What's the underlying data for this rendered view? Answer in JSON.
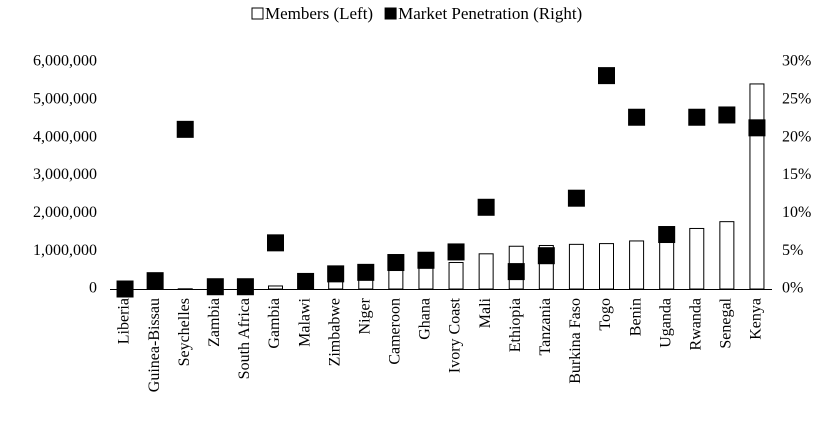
{
  "chart_data": {
    "type": "bar_scatter",
    "categories": [
      "Liberia",
      "Guinea-Bissau",
      "Seychelles",
      "Zambia",
      "South Africa",
      "Gambia",
      "Malawi",
      "Zimbabwe",
      "Niger",
      "Cameroon",
      "Ghana",
      "Ivory Coast",
      "Mali",
      "Ethiopia",
      "Tanzania",
      "Burkina Faso",
      "Togo",
      "Benin",
      "Uganda",
      "Rwanda",
      "Senegal",
      "Kenya"
    ],
    "series": [
      {
        "name": "Members (Left)",
        "color": "#ffffff",
        "axis": "y",
        "values": [
          0,
          20000,
          5000,
          10000,
          10000,
          80000,
          100000,
          200000,
          250000,
          500000,
          550000,
          700000,
          930000,
          1130000,
          1150000,
          1180000,
          1200000,
          1270000,
          1400000,
          1600000,
          1780000,
          5420000
        ]
      },
      {
        "name": "Market Penetration (Right)",
        "color": "#000000",
        "axis": "y2",
        "values": [
          0,
          1.1,
          21.1,
          0.3,
          0.3,
          6.1,
          1,
          2,
          2.2,
          3.5,
          3.8,
          4.9,
          10.8,
          2.3,
          4.4,
          12,
          28.2,
          22.7,
          7.2,
          22.7,
          23,
          21.3
        ]
      }
    ],
    "ylim": [
      0,
      6000000
    ],
    "yticks": [
      {
        "value": 0,
        "label": "0"
      },
      {
        "value": 1000000,
        "label": "1,000,000"
      },
      {
        "value": 2000000,
        "label": "2,000,000"
      },
      {
        "value": 3000000,
        "label": "3,000,000"
      },
      {
        "value": 4000000,
        "label": "4,000,000"
      },
      {
        "value": 5000000,
        "label": "5,000,000"
      },
      {
        "value": 6000000,
        "label": "6,000,000"
      }
    ],
    "y2lim": [
      0,
      30
    ],
    "y2ticks": [
      {
        "value": 0,
        "label": "0%"
      },
      {
        "value": 5,
        "label": "5%"
      },
      {
        "value": 10,
        "label": "10%"
      },
      {
        "value": 15,
        "label": "15%"
      },
      {
        "value": 20,
        "label": "20%"
      },
      {
        "value": 25,
        "label": "25%"
      },
      {
        "value": 30,
        "label": "30%"
      }
    ],
    "legend": "top"
  }
}
